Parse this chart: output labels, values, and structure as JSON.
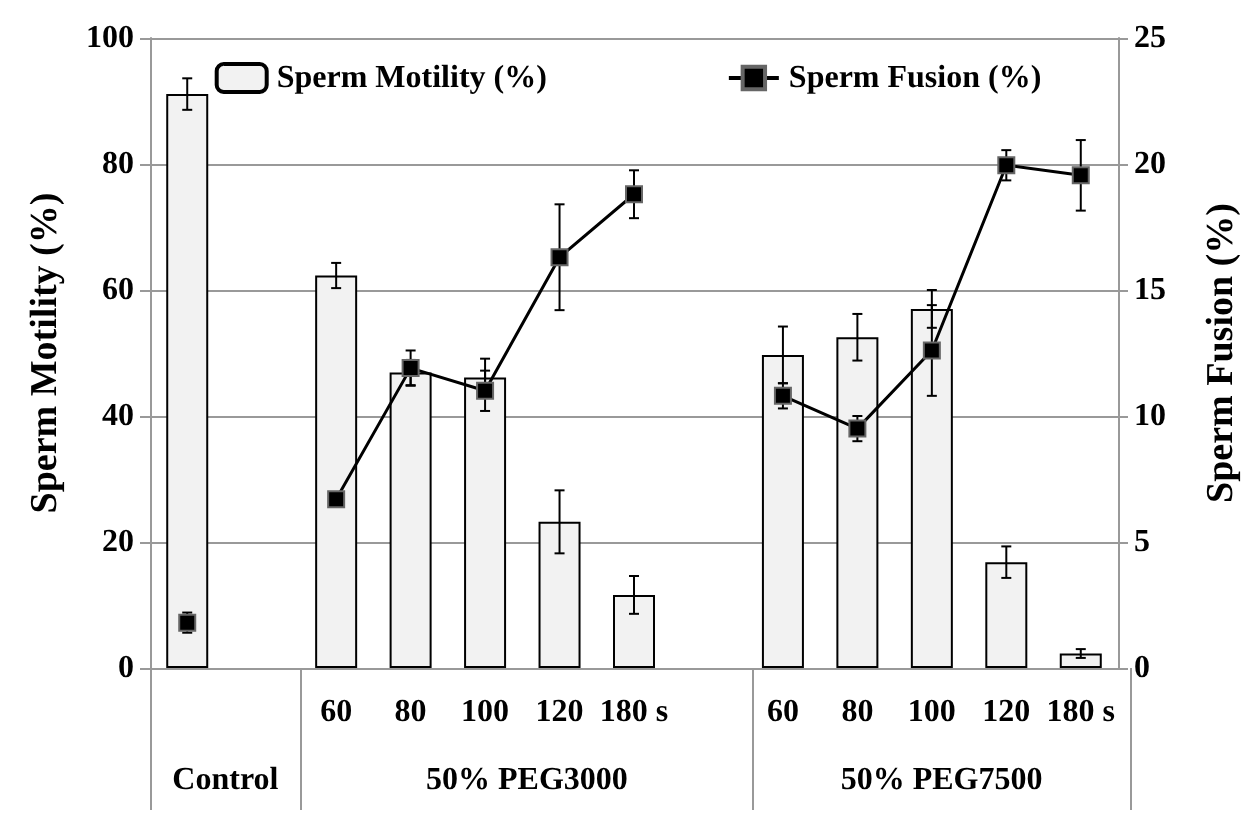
{
  "chart_data": {
    "type": "bar",
    "categories": [
      null,
      null,
      "60",
      "80",
      "100",
      "120",
      "180 s",
      null,
      "60",
      "80",
      "100",
      "120",
      "180 s"
    ],
    "ylabel": "Sperm Motility (%)",
    "y2label": "Sperm Fusion (%)",
    "annotations": [
      "Control",
      "50% PEG3000",
      "50% PEG7500"
    ],
    "series": [
      {
        "name": "Sperm Motility (%)",
        "color": "#f2f2f2",
        "values": [
          91.1,
          null,
          62.3,
          46.9,
          46.1,
          23.2,
          11.6,
          null,
          49.7,
          52.5,
          57,
          16.8,
          2.3
        ],
        "errors": [
          2.5,
          null,
          2,
          2,
          3,
          5,
          3,
          null,
          4.5,
          3.7,
          3,
          2.5,
          0.7
        ]
      },
      {
        "name": "Sperm Fusion (%)",
        "type": "line",
        "axis": "y2",
        "color": "#000000",
        "values": [
          1.8,
          null,
          6.7,
          11.9,
          11,
          16.3,
          18.8,
          null,
          10.8,
          9.5,
          12.6,
          19.95,
          19.55
        ],
        "errors": [
          0.4,
          null,
          0.2,
          0.7,
          0.8,
          2.1,
          0.95,
          null,
          0.5,
          0.5,
          1.8,
          0.6,
          1.4
        ]
      }
    ],
    "ylim": [
      0,
      100
    ],
    "yticks": [
      0,
      20,
      40,
      60,
      80,
      100
    ],
    "y2lim": [
      0,
      25
    ],
    "y2ticks": [
      0,
      5,
      10,
      15,
      20,
      25
    ],
    "grid": "y",
    "legend": "top",
    "marker": "square",
    "line_style": "solid"
  }
}
